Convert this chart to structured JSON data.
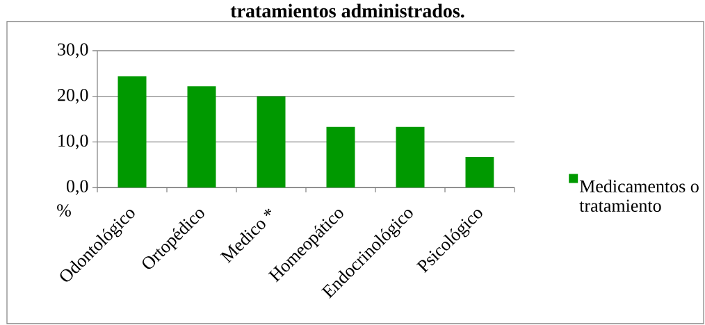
{
  "chart_data": {
    "type": "bar",
    "title": "tratamientos administrados.",
    "ylabel": "%",
    "categories": [
      "Odontológico",
      "Ortopédico",
      "Medico *",
      "Homeopático",
      "Endocrinológico",
      "Psicológico"
    ],
    "series": [
      {
        "name": "Medicamentos o tratamiento",
        "color": "#009900",
        "values": [
          24.4,
          22.2,
          20.0,
          13.3,
          13.3,
          6.7
        ]
      }
    ],
    "ylim": [
      0,
      30
    ],
    "yticks": [
      {
        "value": 0,
        "label": "0,0"
      },
      {
        "value": 10,
        "label": "10,0"
      },
      {
        "value": 20,
        "label": "20,0"
      },
      {
        "value": 30,
        "label": "30,0"
      }
    ],
    "grid": "y",
    "legend": "right"
  }
}
